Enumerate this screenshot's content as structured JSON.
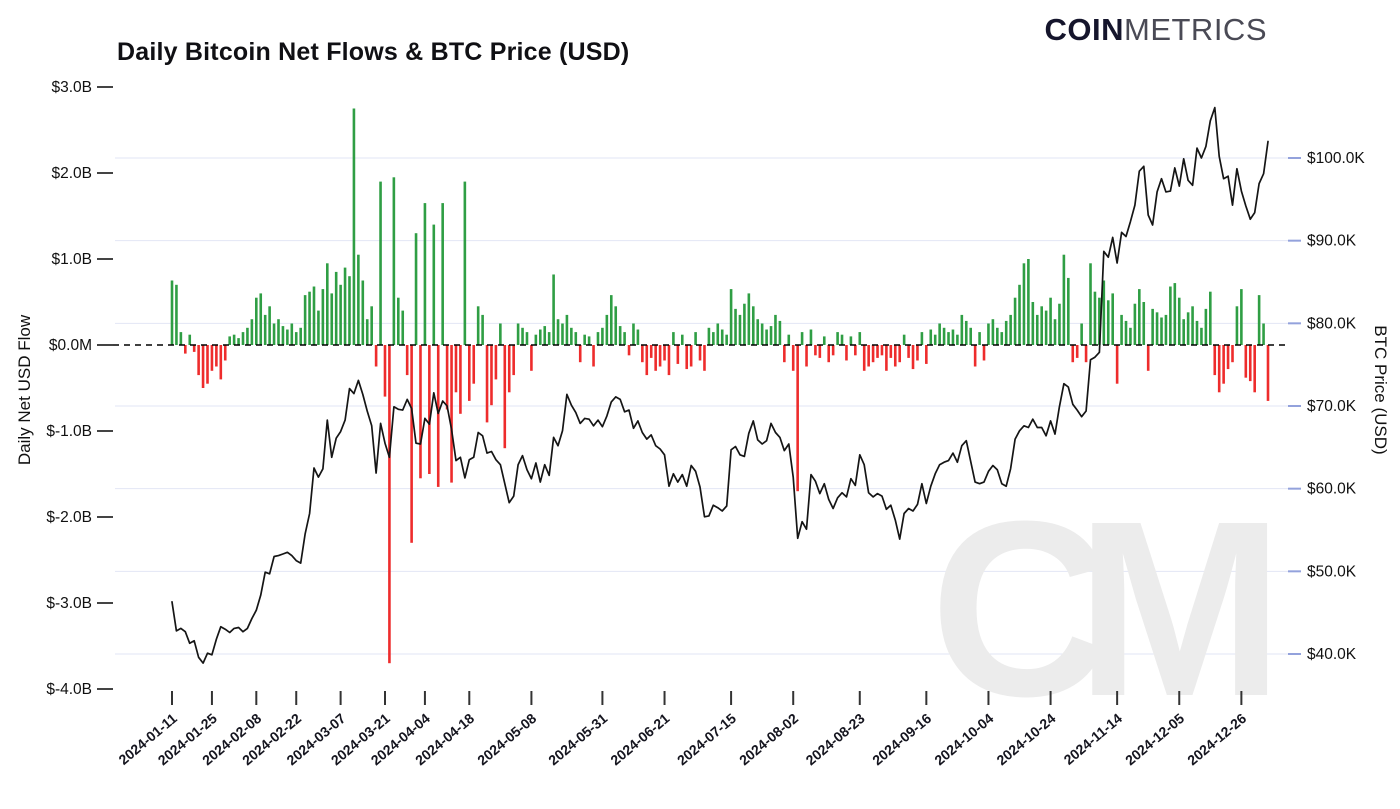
{
  "header": {
    "logo_bold": "COIN",
    "logo_light": "METRICS"
  },
  "chart_data": {
    "type": "bar+line combo",
    "title": "Daily Bitcoin Net Flows & BTC Price (USD)",
    "watermark": "CM",
    "grid_color": "#e2e6f4",
    "zero_line_label": "$0.0M",
    "left_axis": {
      "label": "Daily Net USD Flow",
      "unit": "USD billions",
      "range": [
        -4.0,
        3.0
      ],
      "ticks": [
        {
          "label": "$3.0B",
          "value": 3.0
        },
        {
          "label": "$2.0B",
          "value": 2.0
        },
        {
          "label": "$1.0B",
          "value": 1.0
        },
        {
          "label": "$0.0M",
          "value": 0.0
        },
        {
          "label": "$-1.0B",
          "value": -1.0
        },
        {
          "label": "$-2.0B",
          "value": -2.0
        },
        {
          "label": "$-3.0B",
          "value": -3.0
        },
        {
          "label": "$-4.0B",
          "value": -4.0
        }
      ]
    },
    "right_axis": {
      "label": "BTC Price (USD)",
      "unit": "USD thousands",
      "range": [
        40,
        100
      ],
      "ticks": [
        {
          "label": "$100.0K",
          "value": 100
        },
        {
          "label": "$90.0K",
          "value": 90
        },
        {
          "label": "$80.0K",
          "value": 80
        },
        {
          "label": "$70.0K",
          "value": 70
        },
        {
          "label": "$60.0K",
          "value": 60
        },
        {
          "label": "$50.0K",
          "value": 50
        },
        {
          "label": "$40.0K",
          "value": 40
        }
      ]
    },
    "series": [
      {
        "name": "Daily Net USD Flow",
        "type": "bar",
        "positive_color": "#2f9e44",
        "negative_color": "#ee2c2c"
      },
      {
        "name": "BTC Price (USD)",
        "type": "line",
        "color": "#151515"
      }
    ],
    "x_ticks": [
      "2024-01-11",
      "2024-01-25",
      "2024-02-08",
      "2024-02-22",
      "2024-03-07",
      "2024-03-21",
      "2024-04-04",
      "2024-04-18",
      "2024-05-08",
      "2024-05-31",
      "2024-06-21",
      "2024-07-15",
      "2024-08-02",
      "2024-08-23",
      "2024-09-16",
      "2024-10-04",
      "2024-10-24",
      "2024-11-14",
      "2024-12-05",
      "2024-12-26"
    ],
    "x_range": [
      "2024-01-11",
      "2025-01-06"
    ],
    "dates": [
      "2024-01-11",
      "2024-01-12",
      "2024-01-16",
      "2024-01-17",
      "2024-01-18",
      "2024-01-19",
      "2024-01-22",
      "2024-01-23",
      "2024-01-24",
      "2024-01-25",
      "2024-01-26",
      "2024-01-29",
      "2024-01-30",
      "2024-01-31",
      "2024-02-01",
      "2024-02-02",
      "2024-02-05",
      "2024-02-06",
      "2024-02-07",
      "2024-02-08",
      "2024-02-09",
      "2024-02-12",
      "2024-02-13",
      "2024-02-14",
      "2024-02-15",
      "2024-02-16",
      "2024-02-20",
      "2024-02-21",
      "2024-02-22",
      "2024-02-23",
      "2024-02-26",
      "2024-02-27",
      "2024-02-28",
      "2024-02-29",
      "2024-03-01",
      "2024-03-04",
      "2024-03-05",
      "2024-03-06",
      "2024-03-07",
      "2024-03-08",
      "2024-03-11",
      "2024-03-12",
      "2024-03-13",
      "2024-03-14",
      "2024-03-15",
      "2024-03-18",
      "2024-03-19",
      "2024-03-20",
      "2024-03-21",
      "2024-03-22",
      "2024-03-25",
      "2024-03-26",
      "2024-03-27",
      "2024-03-28",
      "2024-04-01",
      "2024-04-02",
      "2024-04-03",
      "2024-04-04",
      "2024-04-05",
      "2024-04-08",
      "2024-04-09",
      "2024-04-10",
      "2024-04-11",
      "2024-04-12",
      "2024-04-15",
      "2024-04-16",
      "2024-04-17",
      "2024-04-18",
      "2024-04-19",
      "2024-04-22",
      "2024-04-23",
      "2024-04-24",
      "2024-04-25",
      "2024-04-26",
      "2024-04-29",
      "2024-04-30",
      "2024-05-01",
      "2024-05-02",
      "2024-05-03",
      "2024-05-06",
      "2024-05-07",
      "2024-05-08",
      "2024-05-09",
      "2024-05-10",
      "2024-05-13",
      "2024-05-14",
      "2024-05-15",
      "2024-05-16",
      "2024-05-17",
      "2024-05-20",
      "2024-05-21",
      "2024-05-22",
      "2024-05-23",
      "2024-05-24",
      "2024-05-28",
      "2024-05-29",
      "2024-05-30",
      "2024-05-31",
      "2024-06-03",
      "2024-06-04",
      "2024-06-05",
      "2024-06-06",
      "2024-06-07",
      "2024-06-10",
      "2024-06-11",
      "2024-06-12",
      "2024-06-13",
      "2024-06-14",
      "2024-06-17",
      "2024-06-18",
      "2024-06-20",
      "2024-06-21",
      "2024-06-24",
      "2024-06-25",
      "2024-06-26",
      "2024-06-27",
      "2024-06-28",
      "2024-07-01",
      "2024-07-02",
      "2024-07-03",
      "2024-07-05",
      "2024-07-08",
      "2024-07-09",
      "2024-07-10",
      "2024-07-11",
      "2024-07-12",
      "2024-07-15",
      "2024-07-16",
      "2024-07-17",
      "2024-07-18",
      "2024-07-19",
      "2024-07-22",
      "2024-07-23",
      "2024-07-24",
      "2024-07-25",
      "2024-07-26",
      "2024-07-29",
      "2024-07-30",
      "2024-07-31",
      "2024-08-01",
      "2024-08-02",
      "2024-08-05",
      "2024-08-06",
      "2024-08-07",
      "2024-08-08",
      "2024-08-09",
      "2024-08-12",
      "2024-08-13",
      "2024-08-14",
      "2024-08-15",
      "2024-08-16",
      "2024-08-19",
      "2024-08-20",
      "2024-08-21",
      "2024-08-22",
      "2024-08-23",
      "2024-08-26",
      "2024-08-27",
      "2024-08-28",
      "2024-08-29",
      "2024-08-30",
      "2024-09-03",
      "2024-09-04",
      "2024-09-05",
      "2024-09-06",
      "2024-09-09",
      "2024-09-10",
      "2024-09-11",
      "2024-09-12",
      "2024-09-13",
      "2024-09-16",
      "2024-09-17",
      "2024-09-18",
      "2024-09-19",
      "2024-09-20",
      "2024-09-23",
      "2024-09-24",
      "2024-09-25",
      "2024-09-26",
      "2024-09-27",
      "2024-09-30",
      "2024-10-01",
      "2024-10-02",
      "2024-10-03",
      "2024-10-04",
      "2024-10-07",
      "2024-10-08",
      "2024-10-09",
      "2024-10-10",
      "2024-10-11",
      "2024-10-14",
      "2024-10-15",
      "2024-10-16",
      "2024-10-17",
      "2024-10-18",
      "2024-10-21",
      "2024-10-22",
      "2024-10-23",
      "2024-10-24",
      "2024-10-25",
      "2024-10-28",
      "2024-10-29",
      "2024-10-30",
      "2024-10-31",
      "2024-11-01",
      "2024-11-04",
      "2024-11-05",
      "2024-11-06",
      "2024-11-07",
      "2024-11-08",
      "2024-11-11",
      "2024-11-12",
      "2024-11-13",
      "2024-11-14",
      "2024-11-15",
      "2024-11-18",
      "2024-11-19",
      "2024-11-20",
      "2024-11-21",
      "2024-11-22",
      "2024-11-25",
      "2024-11-26",
      "2024-11-27",
      "2024-11-29",
      "2024-12-02",
      "2024-12-03",
      "2024-12-04",
      "2024-12-05",
      "2024-12-06",
      "2024-12-09",
      "2024-12-10",
      "2024-12-11",
      "2024-12-12",
      "2024-12-13",
      "2024-12-16",
      "2024-12-17",
      "2024-12-18",
      "2024-12-19",
      "2024-12-20",
      "2024-12-23",
      "2024-12-24",
      "2024-12-26",
      "2024-12-27",
      "2024-12-30",
      "2024-12-31",
      "2025-01-02",
      "2025-01-03",
      "2025-01-06"
    ],
    "flows": [
      0.75,
      0.7,
      0.15,
      -0.1,
      0.12,
      -0.08,
      -0.35,
      -0.5,
      -0.45,
      -0.3,
      -0.25,
      -0.4,
      -0.18,
      0.1,
      0.12,
      0.08,
      0.15,
      0.2,
      0.3,
      0.55,
      0.6,
      0.35,
      0.45,
      0.25,
      0.3,
      0.22,
      0.18,
      0.25,
      0.15,
      0.2,
      0.58,
      0.62,
      0.68,
      0.4,
      0.65,
      0.95,
      0.6,
      0.85,
      0.7,
      0.9,
      0.8,
      2.75,
      1.05,
      0.75,
      0.3,
      0.45,
      -0.25,
      1.9,
      -0.6,
      -3.7,
      1.95,
      0.55,
      0.4,
      -0.35,
      -2.3,
      1.3,
      -1.55,
      1.65,
      -1.5,
      1.4,
      -1.65,
      1.65,
      -0.75,
      -1.6,
      -0.55,
      -0.8,
      1.9,
      -0.65,
      -0.45,
      0.45,
      0.35,
      -0.9,
      -0.7,
      -0.4,
      0.25,
      -1.2,
      -0.55,
      -0.35,
      0.25,
      0.2,
      0.15,
      -0.3,
      0.12,
      0.18,
      0.22,
      0.15,
      0.82,
      0.3,
      0.25,
      0.35,
      0.2,
      0.15,
      -0.2,
      0.12,
      0.1,
      -0.25,
      0.15,
      0.2,
      0.35,
      0.58,
      0.45,
      0.22,
      0.15,
      -0.12,
      0.25,
      0.18,
      -0.2,
      -0.35,
      -0.15,
      -0.3,
      -0.25,
      -0.18,
      -0.35,
      0.15,
      -0.22,
      0.12,
      -0.28,
      -0.25,
      0.15,
      -0.18,
      -0.3,
      0.2,
      0.15,
      0.25,
      0.18,
      0.12,
      0.65,
      0.42,
      0.35,
      0.48,
      0.6,
      0.45,
      0.3,
      0.25,
      0.18,
      0.22,
      0.35,
      0.28,
      -0.2,
      0.12,
      -0.3,
      -1.7,
      0.15,
      -0.25,
      0.18,
      -0.12,
      -0.15,
      0.1,
      -0.2,
      -0.12,
      0.15,
      0.12,
      -0.18,
      0.1,
      -0.12,
      0.15,
      -0.3,
      -0.25,
      -0.2,
      -0.15,
      -0.12,
      -0.3,
      -0.15,
      -0.25,
      -0.2,
      0.12,
      -0.15,
      -0.28,
      -0.18,
      0.15,
      -0.22,
      0.18,
      0.12,
      0.25,
      0.2,
      0.15,
      0.18,
      0.12,
      0.35,
      0.28,
      0.2,
      -0.25,
      0.15,
      -0.18,
      0.25,
      0.3,
      0.2,
      0.15,
      0.28,
      0.35,
      0.55,
      0.7,
      0.95,
      1.0,
      0.5,
      0.35,
      0.45,
      0.4,
      0.55,
      0.3,
      0.48,
      1.05,
      0.78,
      -0.2,
      -0.15,
      0.25,
      -0.2,
      0.95,
      0.62,
      0.55,
      0.75,
      0.52,
      0.6,
      -0.45,
      0.35,
      0.28,
      0.2,
      0.48,
      0.65,
      0.5,
      -0.3,
      0.42,
      0.38,
      0.32,
      0.35,
      0.68,
      0.72,
      0.55,
      0.3,
      0.38,
      0.45,
      0.28,
      0.2,
      0.42,
      0.62,
      -0.35,
      -0.55,
      -0.45,
      -0.28,
      -0.2,
      0.45,
      0.65,
      -0.38,
      -0.42,
      -0.55,
      0.58,
      0.25,
      -0.65
    ],
    "prices": [
      46.3,
      42.8,
      43.1,
      42.7,
      41.3,
      41.6,
      39.6,
      38.9,
      40.1,
      39.9,
      41.8,
      43.3,
      43.0,
      42.6,
      43.1,
      43.2,
      42.7,
      43.1,
      44.3,
      45.3,
      47.1,
      49.9,
      49.7,
      51.8,
      51.9,
      52.1,
      52.3,
      51.9,
      51.3,
      51.0,
      54.5,
      57.0,
      62.5,
      61.4,
      62.4,
      68.3,
      63.8,
      66.1,
      66.9,
      68.3,
      72.1,
      71.5,
      73.1,
      71.4,
      69.4,
      67.6,
      61.9,
      67.9,
      65.5,
      63.8,
      69.9,
      69.6,
      69.5,
      70.8,
      69.7,
      65.5,
      65.4,
      68.5,
      67.8,
      71.6,
      69.1,
      70.6,
      70.0,
      67.2,
      63.4,
      63.8,
      61.3,
      63.5,
      63.8,
      66.8,
      66.4,
      64.3,
      64.5,
      63.5,
      62.9,
      60.6,
      58.3,
      59.1,
      62.9,
      64.0,
      62.3,
      61.2,
      63.1,
      60.8,
      62.9,
      61.6,
      66.2,
      65.2,
      67.0,
      71.4,
      70.1,
      69.2,
      67.9,
      68.5,
      68.4,
      67.6,
      68.3,
      67.5,
      68.8,
      70.5,
      71.1,
      70.8,
      69.3,
      69.5,
      67.3,
      68.2,
      66.8,
      66.0,
      66.5,
      65.2,
      64.8,
      64.1,
      60.3,
      61.8,
      60.8,
      61.7,
      60.3,
      62.8,
      62.1,
      60.2,
      56.6,
      56.7,
      58.0,
      57.7,
      57.3,
      57.9,
      64.7,
      65.1,
      64.1,
      63.9,
      66.7,
      68.2,
      65.9,
      65.4,
      65.8,
      67.9,
      66.8,
      66.2,
      64.6,
      65.4,
      61.4,
      54.0,
      56.0,
      55.1,
      61.7,
      60.9,
      59.4,
      60.6,
      58.7,
      57.6,
      58.9,
      59.5,
      59.0,
      61.2,
      60.4,
      64.1,
      62.9,
      59.5,
      59.0,
      59.4,
      59.1,
      57.5,
      58.0,
      56.2,
      53.9,
      57.0,
      57.6,
      57.3,
      58.1,
      60.6,
      58.2,
      60.3,
      61.8,
      62.9,
      63.2,
      63.4,
      64.3,
      63.2,
      65.2,
      65.8,
      63.3,
      60.8,
      60.6,
      60.8,
      62.1,
      62.8,
      62.3,
      60.6,
      60.3,
      62.4,
      66.0,
      67.0,
      67.6,
      67.4,
      68.4,
      67.4,
      67.4,
      66.4,
      68.2,
      66.6,
      69.9,
      72.7,
      72.3,
      70.2,
      69.5,
      68.7,
      69.4,
      75.6,
      75.9,
      76.5,
      88.7,
      88.0,
      90.4,
      87.3,
      91.0,
      90.5,
      92.3,
      94.3,
      98.4,
      99.0,
      93.1,
      91.9,
      95.9,
      97.5,
      95.9,
      96.0,
      98.8,
      96.6,
      99.9,
      97.3,
      96.7,
      101.2,
      100.0,
      101.4,
      104.5,
      106.1,
      100.2,
      97.5,
      97.8,
      94.3,
      98.7,
      96.0,
      94.2,
      92.6,
      93.4,
      96.9,
      98.1,
      102.0
    ]
  }
}
